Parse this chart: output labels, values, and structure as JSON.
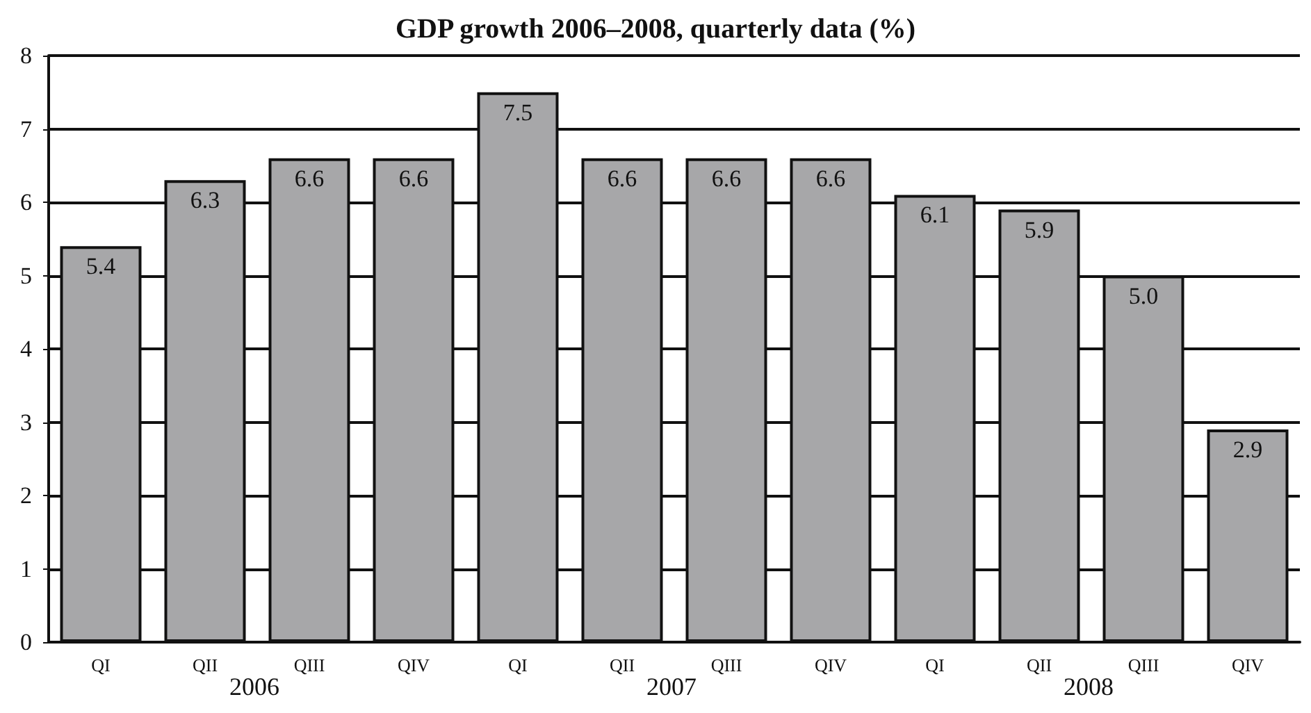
{
  "chart_data": {
    "type": "bar",
    "title": "GDP growth 2006–2008, quarterly data (%)",
    "categories": [
      "QI",
      "QII",
      "QIII",
      "QIV",
      "QI",
      "QII",
      "QIII",
      "QIV",
      "QI",
      "QII",
      "QIII",
      "QIV"
    ],
    "values": [
      5.4,
      6.3,
      6.6,
      6.6,
      7.5,
      6.6,
      6.6,
      6.6,
      6.1,
      5.9,
      5.0,
      2.9
    ],
    "value_labels": [
      "5.4",
      "6.3",
      "6.6",
      "6.6",
      "7.5",
      "6.6",
      "6.6",
      "6.6",
      "6.1",
      "5.9",
      "5.0",
      "2.9"
    ],
    "color": "#a7a7a9",
    "annotations": [
      "2006",
      "2007",
      "2008"
    ],
    "ylim": [
      0,
      8
    ],
    "yticks": [
      0,
      1,
      2,
      3,
      4,
      5,
      6,
      7,
      8
    ],
    "grid": "y"
  }
}
